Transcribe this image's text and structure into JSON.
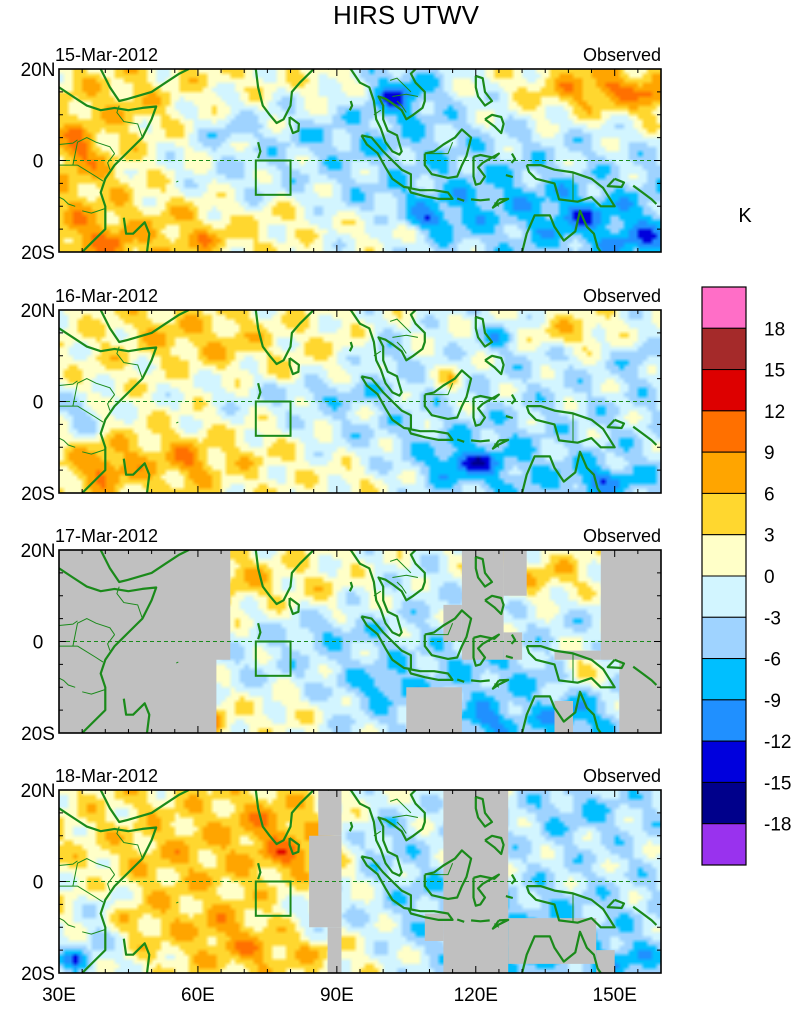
{
  "chart_data": {
    "type": "heatmap",
    "title": "HIRS UTWV",
    "unit_label": "K",
    "panel_tag": "Observed",
    "x_ticks": [
      "30E",
      "60E",
      "90E",
      "120E",
      "150E"
    ],
    "x_tick_values": [
      30,
      60,
      90,
      120,
      150
    ],
    "y_ticks": [
      "20N",
      "0",
      "20S"
    ],
    "y_tick_values": [
      20,
      0,
      -20
    ],
    "xlim": [
      30,
      160
    ],
    "ylim": [
      -20,
      20
    ],
    "colorbar": {
      "labels": [
        "18",
        "15",
        "12",
        "9",
        "6",
        "3",
        "0",
        "-3",
        "-6",
        "-9",
        "-12",
        "-15",
        "-18"
      ],
      "level_values": [
        18,
        15,
        12,
        9,
        6,
        3,
        0,
        -3,
        -6,
        -9,
        -12,
        -15,
        -18
      ],
      "colors": [
        "#ff6ec7",
        "#a52a2a",
        "#dd0000",
        "#ff7000",
        "#ffa500",
        "#ffd72f",
        "#ffffc8",
        "#d2f5ff",
        "#9fd3ff",
        "#00bfff",
        "#2090ff",
        "#0000dd",
        "#00008b",
        "#9932ee"
      ],
      "missing_color": "#c0c0c0",
      "coast_color": "#1a8a1a"
    },
    "panels": [
      {
        "date": "15-Mar-2012",
        "blobs": [
          [
            35,
            -15,
            8,
            5,
            9
          ],
          [
            42,
            -18,
            6,
            4,
            11
          ],
          [
            60,
            -17,
            12,
            4,
            8
          ],
          [
            57,
            -12,
            8,
            4,
            6
          ],
          [
            34,
            2,
            5,
            7,
            12
          ],
          [
            40,
            -3,
            8,
            6,
            6
          ],
          [
            45,
            12,
            12,
            7,
            6
          ],
          [
            52,
            15,
            8,
            5,
            3
          ],
          [
            65,
            18,
            14,
            4,
            3
          ],
          [
            88,
            17,
            8,
            4,
            3
          ],
          [
            78,
            -12,
            10,
            5,
            4
          ],
          [
            100,
            -15,
            15,
            5,
            3
          ],
          [
            78,
            -2,
            24,
            4,
            -3
          ],
          [
            98,
            3,
            20,
            6,
            -6
          ],
          [
            120,
            -8,
            25,
            4,
            -8
          ],
          [
            110,
            -13,
            10,
            4,
            -15
          ],
          [
            103,
            14,
            7,
            6,
            -14
          ],
          [
            118,
            -3,
            14,
            5,
            -6
          ],
          [
            142,
            -12,
            12,
            5,
            -12
          ],
          [
            155,
            -17,
            8,
            4,
            -12
          ],
          [
            140,
            4,
            15,
            4,
            -3
          ],
          [
            145,
            15,
            15,
            5,
            8
          ],
          [
            148,
            16,
            5,
            2,
            14
          ],
          [
            158,
            14,
            4,
            3,
            13
          ],
          [
            66,
            6,
            6,
            4,
            -6
          ],
          [
            72,
            -6,
            8,
            5,
            -3
          ],
          [
            150,
            -3,
            8,
            4,
            -3
          ],
          [
            85,
            5,
            8,
            3,
            -6
          ]
        ]
      },
      {
        "date": "16-Mar-2012",
        "blobs": [
          [
            40,
            -14,
            6,
            4,
            13
          ],
          [
            58,
            -13,
            6,
            4,
            11
          ],
          [
            65,
            12,
            12,
            6,
            6
          ],
          [
            54,
            15,
            10,
            5,
            6
          ],
          [
            40,
            8,
            8,
            6,
            3
          ],
          [
            35,
            -3,
            5,
            5,
            -6
          ],
          [
            45,
            -12,
            10,
            4,
            6
          ],
          [
            88,
            12,
            10,
            6,
            3
          ],
          [
            72,
            -12,
            14,
            5,
            4
          ],
          [
            100,
            10,
            6,
            5,
            -6
          ],
          [
            88,
            2,
            26,
            5,
            -6
          ],
          [
            100,
            -6,
            16,
            4,
            -4
          ],
          [
            119,
            -13,
            9,
            4,
            -17
          ],
          [
            147,
            -17,
            7,
            3,
            -12
          ],
          [
            125,
            -10,
            12,
            5,
            -6
          ],
          [
            140,
            -8,
            14,
            5,
            -3
          ],
          [
            135,
            8,
            15,
            6,
            -3
          ],
          [
            115,
            5,
            4,
            3,
            6
          ],
          [
            140,
            15,
            15,
            5,
            6
          ],
          [
            155,
            10,
            5,
            6,
            -6
          ],
          [
            95,
            -17,
            8,
            3,
            3
          ],
          [
            80,
            6,
            8,
            4,
            3
          ],
          [
            125,
            14,
            6,
            4,
            -9
          ]
        ]
      },
      {
        "date": "17-Mar-2012",
        "blobs": [
          [
            70,
            13,
            10,
            6,
            6
          ],
          [
            86,
            12,
            8,
            6,
            3
          ],
          [
            75,
            -6,
            14,
            5,
            -3
          ],
          [
            88,
            2,
            14,
            5,
            -6
          ],
          [
            100,
            -10,
            10,
            5,
            -9
          ],
          [
            110,
            10,
            6,
            5,
            -3
          ],
          [
            62,
            -17,
            4,
            3,
            12
          ],
          [
            80,
            -15,
            10,
            5,
            3
          ],
          [
            95,
            -15,
            8,
            4,
            -3
          ],
          [
            120,
            -5,
            10,
            6,
            -6
          ],
          [
            132,
            -8,
            10,
            5,
            -6
          ],
          [
            122,
            -17,
            6,
            3,
            -12
          ],
          [
            140,
            -16,
            6,
            4,
            -12
          ],
          [
            135,
            14,
            10,
            5,
            6
          ],
          [
            142,
            -6,
            5,
            4,
            6
          ],
          [
            140,
            5,
            10,
            4,
            -3
          ]
        ],
        "missing": [
          [
            [
              30,
              20
            ],
            [
              67,
              20
            ],
            [
              67,
              -4
            ],
            [
              64,
              -4
            ],
            [
              64,
              -20
            ],
            [
              30,
              -20
            ]
          ],
          [
            [
              105,
              -10
            ],
            [
              105,
              -20
            ],
            [
              117,
              -20
            ],
            [
              117,
              -10
            ]
          ],
          [
            [
              113,
              8
            ],
            [
              113,
              0
            ],
            [
              117,
              0
            ],
            [
              117,
              8
            ]
          ],
          [
            [
              117,
              20
            ],
            [
              126,
              20
            ],
            [
              126,
              -4
            ],
            [
              117,
              -4
            ]
          ],
          [
            [
              126,
              20
            ],
            [
              131,
              20
            ],
            [
              131,
              10
            ],
            [
              126,
              10
            ]
          ],
          [
            [
              126,
              2
            ],
            [
              130,
              2
            ],
            [
              130,
              -4
            ],
            [
              126,
              -4
            ]
          ],
          [
            [
              147,
              20
            ],
            [
              160,
              20
            ],
            [
              160,
              -20
            ],
            [
              151,
              -20
            ],
            [
              151,
              -4
            ],
            [
              147,
              -4
            ]
          ],
          [
            [
              137,
              -2
            ],
            [
              147,
              -2
            ],
            [
              147,
              -4
            ],
            [
              137,
              -4
            ]
          ],
          [
            [
              137,
              -13
            ],
            [
              141,
              -13
            ],
            [
              141,
              -20
            ],
            [
              137,
              -20
            ]
          ]
        ]
      },
      {
        "date": "18-Mar-2012",
        "blobs": [
          [
            55,
            5,
            18,
            12,
            6
          ],
          [
            75,
            12,
            10,
            6,
            9
          ],
          [
            80,
            6,
            8,
            4,
            12
          ],
          [
            48,
            -8,
            12,
            6,
            6
          ],
          [
            65,
            -10,
            8,
            4,
            9
          ],
          [
            72,
            -15,
            10,
            4,
            9
          ],
          [
            40,
            -5,
            6,
            6,
            -3
          ],
          [
            34,
            -17,
            4,
            3,
            -12
          ],
          [
            38,
            -12,
            5,
            5,
            -6
          ],
          [
            88,
            -8,
            10,
            5,
            -3
          ],
          [
            100,
            8,
            8,
            8,
            -6
          ],
          [
            108,
            -2,
            8,
            6,
            -6
          ],
          [
            120,
            -10,
            12,
            5,
            -9
          ],
          [
            127,
            -15,
            5,
            3,
            -12
          ],
          [
            138,
            -8,
            10,
            5,
            -6
          ],
          [
            150,
            -17,
            10,
            4,
            -9
          ],
          [
            142,
            15,
            12,
            5,
            -6
          ],
          [
            150,
            2,
            8,
            6,
            -3
          ],
          [
            45,
            15,
            10,
            5,
            3
          ],
          [
            85,
            -15,
            8,
            3,
            6
          ]
        ],
        "missing": [
          [
            [
              86,
              20
            ],
            [
              91,
              20
            ],
            [
              91,
              10
            ],
            [
              86,
              10
            ]
          ],
          [
            [
              84,
              10
            ],
            [
              91,
              10
            ],
            [
              91,
              -10
            ],
            [
              84,
              -10
            ]
          ],
          [
            [
              88,
              -10
            ],
            [
              91,
              -10
            ],
            [
              91,
              -20
            ],
            [
              88,
              -20
            ]
          ],
          [
            [
              113,
              20
            ],
            [
              127,
              20
            ],
            [
              127,
              -20
            ],
            [
              113,
              -20
            ]
          ],
          [
            [
              109,
              -7
            ],
            [
              113,
              -7
            ],
            [
              113,
              -13
            ],
            [
              109,
              -13
            ]
          ],
          [
            [
              127,
              -8
            ],
            [
              146,
              -8
            ],
            [
              146,
              -18
            ],
            [
              127,
              -18
            ]
          ],
          [
            [
              146,
              -15
            ],
            [
              150,
              -15
            ],
            [
              150,
              -20
            ],
            [
              146,
              -20
            ]
          ]
        ]
      }
    ]
  }
}
